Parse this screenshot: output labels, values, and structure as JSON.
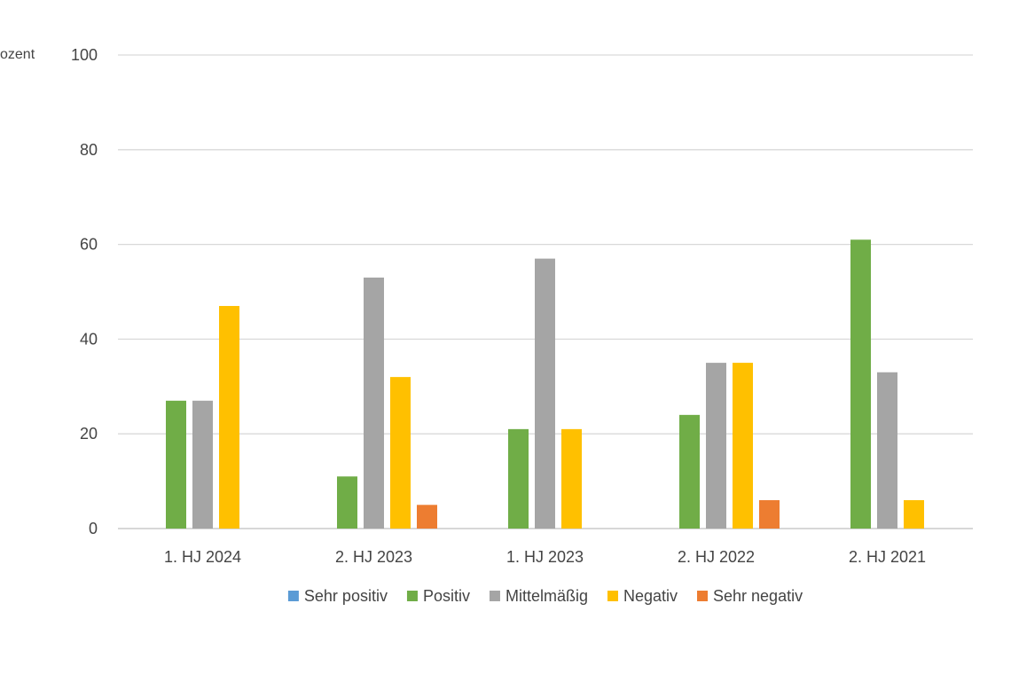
{
  "chart_data": {
    "type": "bar",
    "title": "",
    "xlabel": "",
    "ylabel": "ozent",
    "ylim": [
      0,
      100
    ],
    "yticks": [
      0,
      20,
      40,
      60,
      80,
      100
    ],
    "grid": true,
    "legend_position": "bottom",
    "categories": [
      "1. HJ 2024",
      "2. HJ 2023",
      "1. HJ 2023",
      "2. HJ 2022",
      "2. HJ 2021"
    ],
    "series": [
      {
        "name": "Sehr positiv",
        "color": "#5B9BD5",
        "values": [
          0,
          0,
          0,
          0,
          0
        ]
      },
      {
        "name": "Positiv",
        "color": "#70AD47",
        "values": [
          27,
          11,
          21,
          24,
          61
        ]
      },
      {
        "name": "Mittelmäßig",
        "color": "#A5A5A5",
        "values": [
          27,
          53,
          57,
          35,
          33
        ]
      },
      {
        "name": "Negativ",
        "color": "#FFC000",
        "values": [
          47,
          32,
          21,
          35,
          6
        ]
      },
      {
        "name": "Sehr negativ",
        "color": "#ED7D31",
        "values": [
          0,
          5,
          0,
          6,
          0
        ]
      }
    ]
  }
}
